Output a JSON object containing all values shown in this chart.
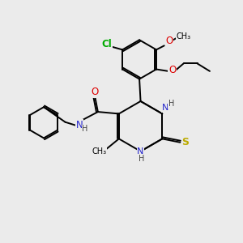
{
  "bg_color": "#ebebeb",
  "atom_colors": {
    "C": "#000000",
    "N": "#2222cc",
    "O": "#dd0000",
    "S": "#bbaa00",
    "Cl": "#00aa00",
    "H": "#444444"
  },
  "bond_color": "#000000",
  "bond_width": 1.4,
  "figsize": [
    3.0,
    3.0
  ],
  "dpi": 100
}
